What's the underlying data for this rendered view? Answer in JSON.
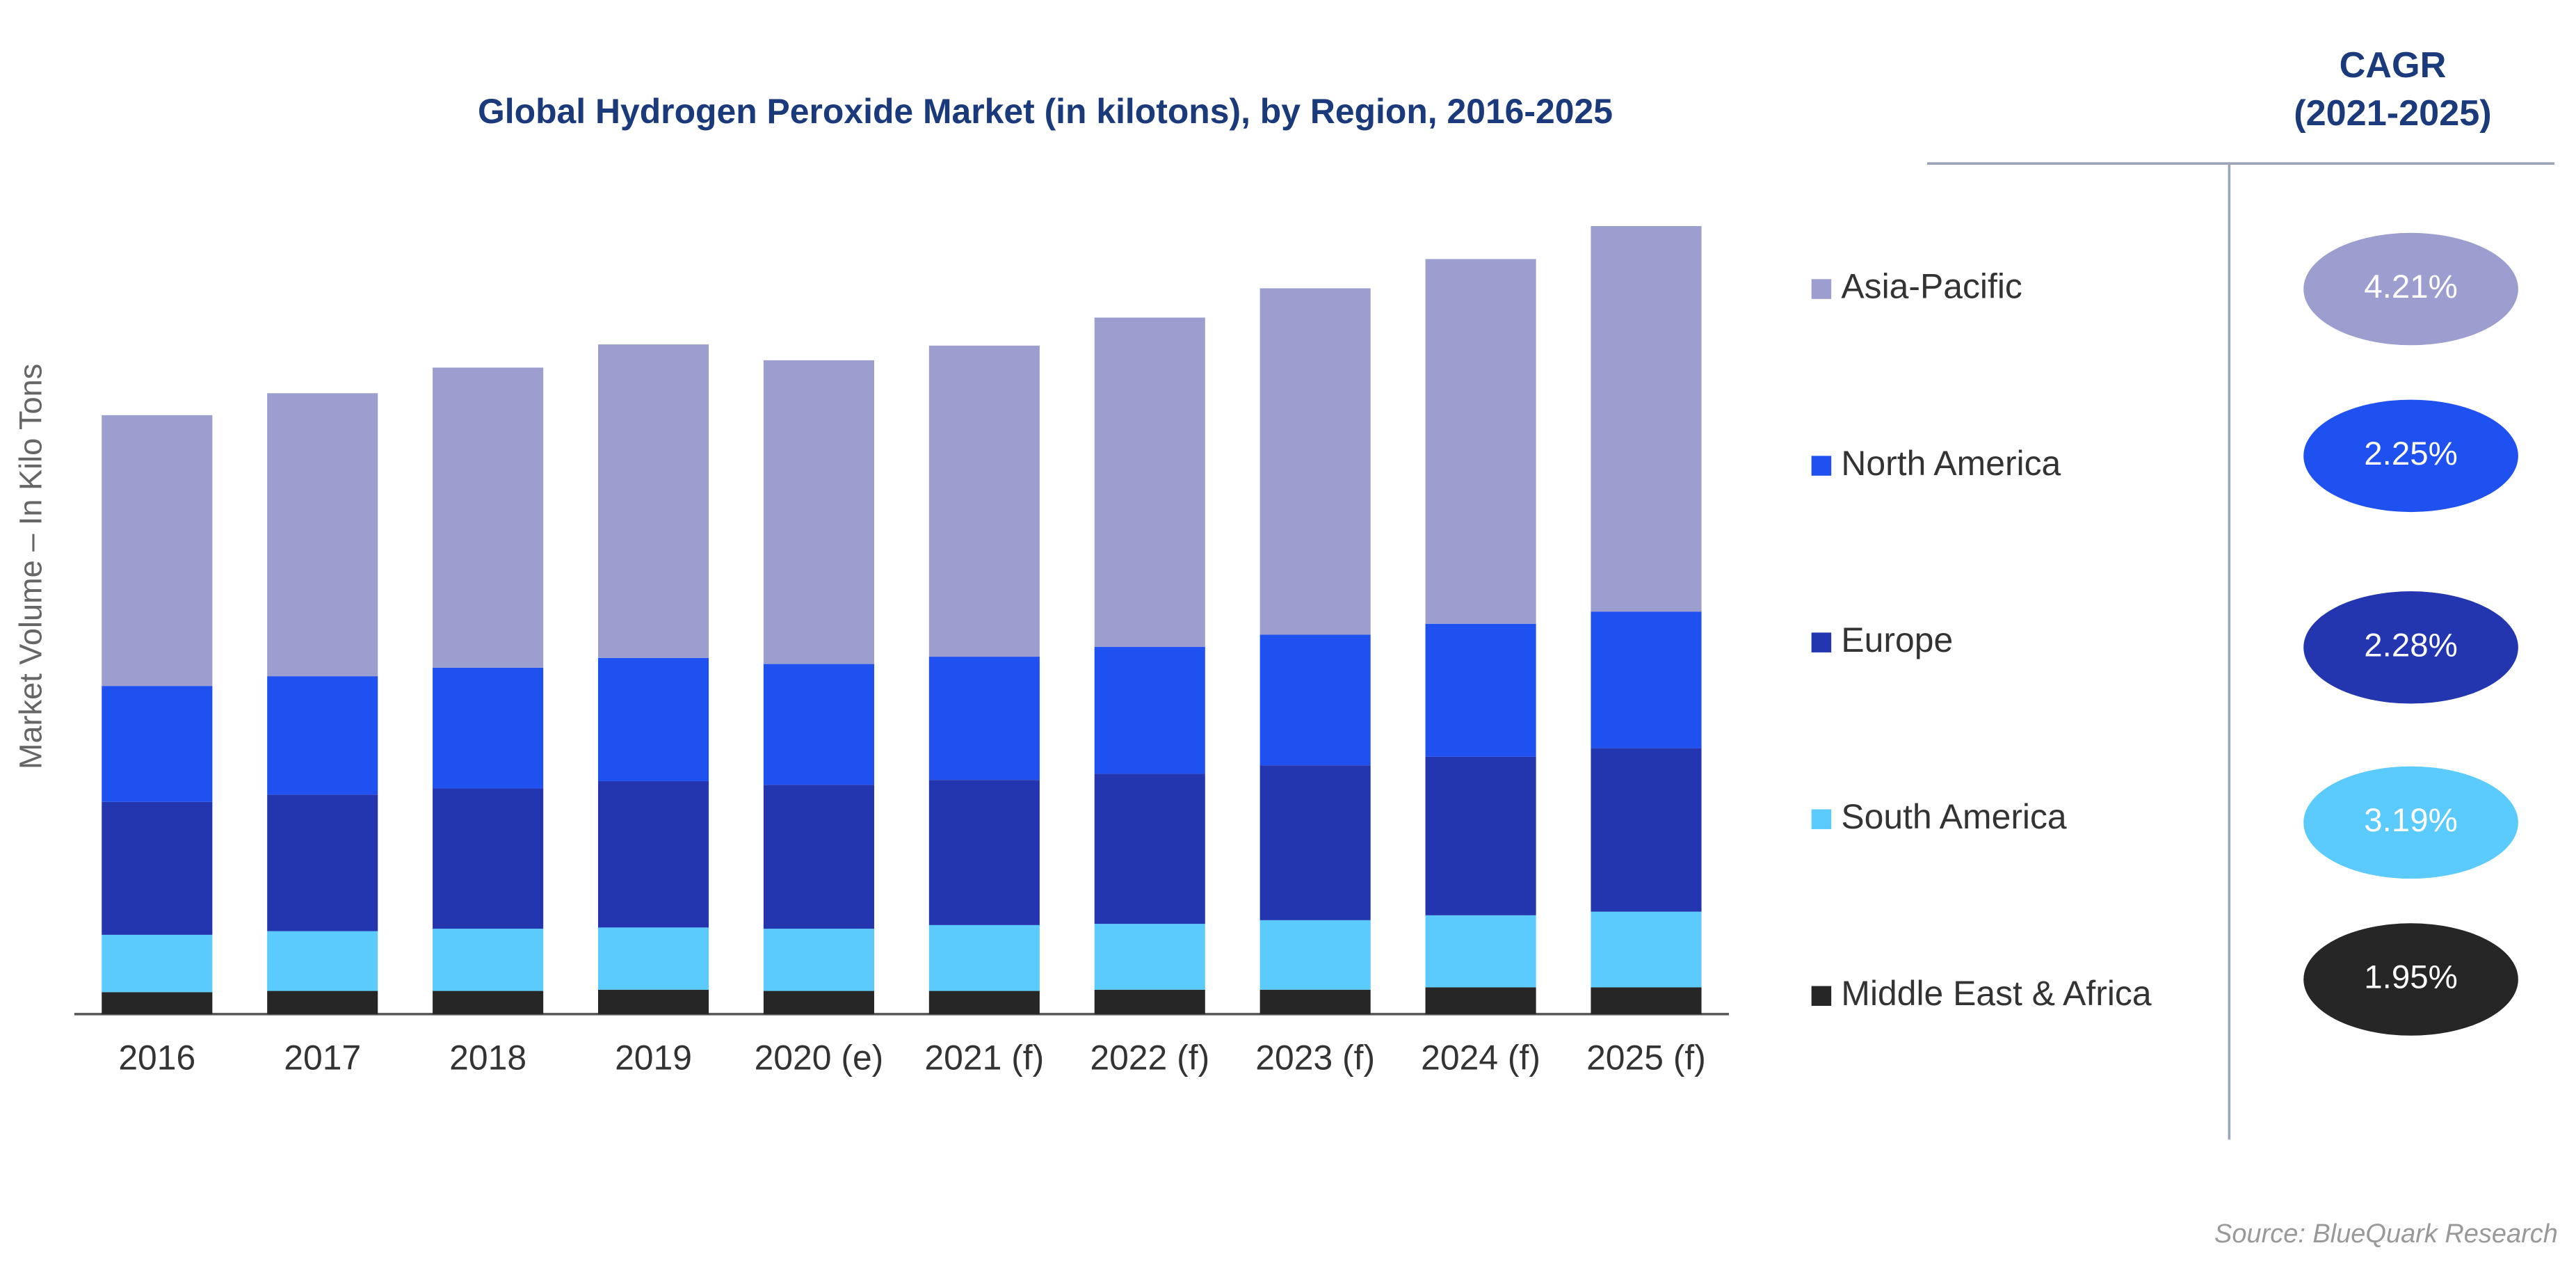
{
  "chart_data": {
    "type": "stacked_bar",
    "title": "Global Hydrogen Peroxide Market (in kilotons), by Region, 2016-2025",
    "y_label": "Market Volume – In Kilo Tons",
    "categories": [
      "2016",
      "2017",
      "2018",
      "2019",
      "2020 (e)",
      "2021 (f)",
      "2022 (f)",
      "2023 (f)",
      "2024 (f)",
      "2025 (f)"
    ],
    "ylim": [
      0,
      700
    ],
    "series": [
      {
        "name": "Asia-Pacific",
        "color": "#9b9ecf",
        "values": [
          222,
          232,
          246,
          257,
          249,
          255,
          270,
          284,
          299,
          316
        ]
      },
      {
        "name": "North America",
        "color": "#1f50f0",
        "values": [
          95,
          97,
          99,
          101,
          99,
          101,
          104,
          107,
          109,
          112
        ]
      },
      {
        "name": "Europe",
        "color": "#2336b0",
        "values": [
          109,
          112,
          115,
          120,
          118,
          119,
          123,
          127,
          130,
          134
        ]
      },
      {
        "name": "South America",
        "color": "#5acbfc",
        "values": [
          47,
          49,
          51,
          51,
          51,
          54,
          54,
          57,
          59,
          62
        ]
      },
      {
        "name": "Middle East & Africa",
        "color": "#262626",
        "values": [
          18,
          19,
          19,
          20,
          19,
          19,
          20,
          20,
          22,
          22
        ]
      }
    ],
    "cagr": {
      "title": [
        "CAGR",
        "(2021-2025)"
      ],
      "values": [
        4.21,
        2.25,
        2.28,
        3.19,
        1.95
      ],
      "value_labels": [
        "4.21%",
        "2.25%",
        "2.28%",
        "3.19%",
        "1.95%"
      ]
    },
    "source": "Source: BlueQuark Research"
  }
}
